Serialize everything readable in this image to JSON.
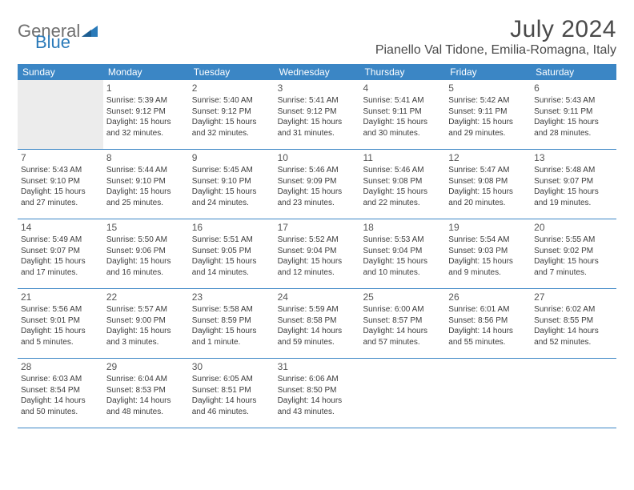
{
  "logo": {
    "text1": "General",
    "text2": "Blue"
  },
  "title": "July 2024",
  "location": "Pianello Val Tidone, Emilia-Romagna, Italy",
  "colors": {
    "header_bg": "#3b86c5",
    "header_text": "#ffffff",
    "row_divider": "#3b86c5",
    "empty_bg": "#ececec",
    "text": "#3c3c3c",
    "logo_grey": "#6f6f6f",
    "logo_blue": "#2a7ab9"
  },
  "weekdays": [
    "Sunday",
    "Monday",
    "Tuesday",
    "Wednesday",
    "Thursday",
    "Friday",
    "Saturday"
  ],
  "weeks": [
    [
      {
        "day": "",
        "empty": true
      },
      {
        "day": "1",
        "sunrise": "Sunrise: 5:39 AM",
        "sunset": "Sunset: 9:12 PM",
        "daylight1": "Daylight: 15 hours",
        "daylight2": "and 32 minutes."
      },
      {
        "day": "2",
        "sunrise": "Sunrise: 5:40 AM",
        "sunset": "Sunset: 9:12 PM",
        "daylight1": "Daylight: 15 hours",
        "daylight2": "and 32 minutes."
      },
      {
        "day": "3",
        "sunrise": "Sunrise: 5:41 AM",
        "sunset": "Sunset: 9:12 PM",
        "daylight1": "Daylight: 15 hours",
        "daylight2": "and 31 minutes."
      },
      {
        "day": "4",
        "sunrise": "Sunrise: 5:41 AM",
        "sunset": "Sunset: 9:11 PM",
        "daylight1": "Daylight: 15 hours",
        "daylight2": "and 30 minutes."
      },
      {
        "day": "5",
        "sunrise": "Sunrise: 5:42 AM",
        "sunset": "Sunset: 9:11 PM",
        "daylight1": "Daylight: 15 hours",
        "daylight2": "and 29 minutes."
      },
      {
        "day": "6",
        "sunrise": "Sunrise: 5:43 AM",
        "sunset": "Sunset: 9:11 PM",
        "daylight1": "Daylight: 15 hours",
        "daylight2": "and 28 minutes."
      }
    ],
    [
      {
        "day": "7",
        "sunrise": "Sunrise: 5:43 AM",
        "sunset": "Sunset: 9:10 PM",
        "daylight1": "Daylight: 15 hours",
        "daylight2": "and 27 minutes."
      },
      {
        "day": "8",
        "sunrise": "Sunrise: 5:44 AM",
        "sunset": "Sunset: 9:10 PM",
        "daylight1": "Daylight: 15 hours",
        "daylight2": "and 25 minutes."
      },
      {
        "day": "9",
        "sunrise": "Sunrise: 5:45 AM",
        "sunset": "Sunset: 9:10 PM",
        "daylight1": "Daylight: 15 hours",
        "daylight2": "and 24 minutes."
      },
      {
        "day": "10",
        "sunrise": "Sunrise: 5:46 AM",
        "sunset": "Sunset: 9:09 PM",
        "daylight1": "Daylight: 15 hours",
        "daylight2": "and 23 minutes."
      },
      {
        "day": "11",
        "sunrise": "Sunrise: 5:46 AM",
        "sunset": "Sunset: 9:08 PM",
        "daylight1": "Daylight: 15 hours",
        "daylight2": "and 22 minutes."
      },
      {
        "day": "12",
        "sunrise": "Sunrise: 5:47 AM",
        "sunset": "Sunset: 9:08 PM",
        "daylight1": "Daylight: 15 hours",
        "daylight2": "and 20 minutes."
      },
      {
        "day": "13",
        "sunrise": "Sunrise: 5:48 AM",
        "sunset": "Sunset: 9:07 PM",
        "daylight1": "Daylight: 15 hours",
        "daylight2": "and 19 minutes."
      }
    ],
    [
      {
        "day": "14",
        "sunrise": "Sunrise: 5:49 AM",
        "sunset": "Sunset: 9:07 PM",
        "daylight1": "Daylight: 15 hours",
        "daylight2": "and 17 minutes."
      },
      {
        "day": "15",
        "sunrise": "Sunrise: 5:50 AM",
        "sunset": "Sunset: 9:06 PM",
        "daylight1": "Daylight: 15 hours",
        "daylight2": "and 16 minutes."
      },
      {
        "day": "16",
        "sunrise": "Sunrise: 5:51 AM",
        "sunset": "Sunset: 9:05 PM",
        "daylight1": "Daylight: 15 hours",
        "daylight2": "and 14 minutes."
      },
      {
        "day": "17",
        "sunrise": "Sunrise: 5:52 AM",
        "sunset": "Sunset: 9:04 PM",
        "daylight1": "Daylight: 15 hours",
        "daylight2": "and 12 minutes."
      },
      {
        "day": "18",
        "sunrise": "Sunrise: 5:53 AM",
        "sunset": "Sunset: 9:04 PM",
        "daylight1": "Daylight: 15 hours",
        "daylight2": "and 10 minutes."
      },
      {
        "day": "19",
        "sunrise": "Sunrise: 5:54 AM",
        "sunset": "Sunset: 9:03 PM",
        "daylight1": "Daylight: 15 hours",
        "daylight2": "and 9 minutes."
      },
      {
        "day": "20",
        "sunrise": "Sunrise: 5:55 AM",
        "sunset": "Sunset: 9:02 PM",
        "daylight1": "Daylight: 15 hours",
        "daylight2": "and 7 minutes."
      }
    ],
    [
      {
        "day": "21",
        "sunrise": "Sunrise: 5:56 AM",
        "sunset": "Sunset: 9:01 PM",
        "daylight1": "Daylight: 15 hours",
        "daylight2": "and 5 minutes."
      },
      {
        "day": "22",
        "sunrise": "Sunrise: 5:57 AM",
        "sunset": "Sunset: 9:00 PM",
        "daylight1": "Daylight: 15 hours",
        "daylight2": "and 3 minutes."
      },
      {
        "day": "23",
        "sunrise": "Sunrise: 5:58 AM",
        "sunset": "Sunset: 8:59 PM",
        "daylight1": "Daylight: 15 hours",
        "daylight2": "and 1 minute."
      },
      {
        "day": "24",
        "sunrise": "Sunrise: 5:59 AM",
        "sunset": "Sunset: 8:58 PM",
        "daylight1": "Daylight: 14 hours",
        "daylight2": "and 59 minutes."
      },
      {
        "day": "25",
        "sunrise": "Sunrise: 6:00 AM",
        "sunset": "Sunset: 8:57 PM",
        "daylight1": "Daylight: 14 hours",
        "daylight2": "and 57 minutes."
      },
      {
        "day": "26",
        "sunrise": "Sunrise: 6:01 AM",
        "sunset": "Sunset: 8:56 PM",
        "daylight1": "Daylight: 14 hours",
        "daylight2": "and 55 minutes."
      },
      {
        "day": "27",
        "sunrise": "Sunrise: 6:02 AM",
        "sunset": "Sunset: 8:55 PM",
        "daylight1": "Daylight: 14 hours",
        "daylight2": "and 52 minutes."
      }
    ],
    [
      {
        "day": "28",
        "sunrise": "Sunrise: 6:03 AM",
        "sunset": "Sunset: 8:54 PM",
        "daylight1": "Daylight: 14 hours",
        "daylight2": "and 50 minutes."
      },
      {
        "day": "29",
        "sunrise": "Sunrise: 6:04 AM",
        "sunset": "Sunset: 8:53 PM",
        "daylight1": "Daylight: 14 hours",
        "daylight2": "and 48 minutes."
      },
      {
        "day": "30",
        "sunrise": "Sunrise: 6:05 AM",
        "sunset": "Sunset: 8:51 PM",
        "daylight1": "Daylight: 14 hours",
        "daylight2": "and 46 minutes."
      },
      {
        "day": "31",
        "sunrise": "Sunrise: 6:06 AM",
        "sunset": "Sunset: 8:50 PM",
        "daylight1": "Daylight: 14 hours",
        "daylight2": "and 43 minutes."
      },
      {
        "day": "",
        "empty": false
      },
      {
        "day": "",
        "empty": false
      },
      {
        "day": "",
        "empty": false
      }
    ]
  ]
}
